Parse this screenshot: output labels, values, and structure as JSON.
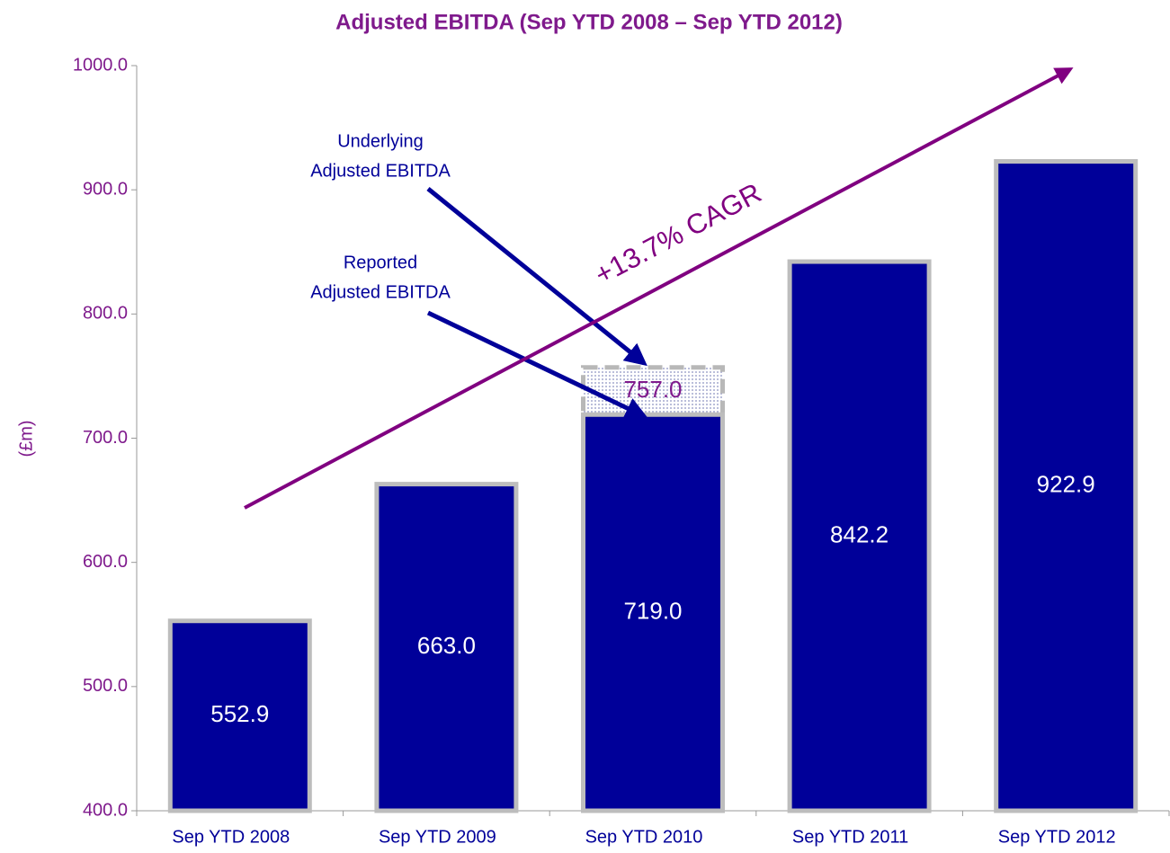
{
  "chart_data": {
    "type": "bar",
    "title": "Adjusted EBITDA (Sep YTD 2008 – Sep YTD 2012)",
    "y_label": "(£m)",
    "categories": [
      "Sep YTD 2008",
      "Sep YTD 2009",
      "Sep YTD 2010",
      "Sep YTD 2011",
      "Sep YTD 2012"
    ],
    "series": [
      {
        "name": [
          "Underlying",
          "Adjusted EBITDA"
        ],
        "color": "#9aa0c8",
        "values": [
          null,
          null,
          757.0,
          null,
          null
        ],
        "value_labels": [
          null,
          null,
          "757.0",
          null,
          null
        ]
      },
      {
        "name": [
          "Reported",
          "Adjusted EBITDA"
        ],
        "color": "#000099",
        "values": [
          552.9,
          663.0,
          719.0,
          842.2,
          922.9
        ],
        "value_labels": [
          "552.9",
          "663.0",
          "719.0",
          "842.2",
          "922.9"
        ]
      }
    ],
    "annotations": [
      "+13.7% CAGR"
    ],
    "ylim": [
      400,
      1000
    ],
    "yticks": [
      {
        "value": 400,
        "label": "400.0"
      },
      {
        "value": 500,
        "label": "500.0"
      },
      {
        "value": 600,
        "label": "600.0"
      },
      {
        "value": 700,
        "label": "700.0"
      },
      {
        "value": 800,
        "label": "800.0"
      },
      {
        "value": 900,
        "label": "900.0"
      },
      {
        "value": 1000,
        "label": "1000.0"
      }
    ],
    "grid": false
  }
}
